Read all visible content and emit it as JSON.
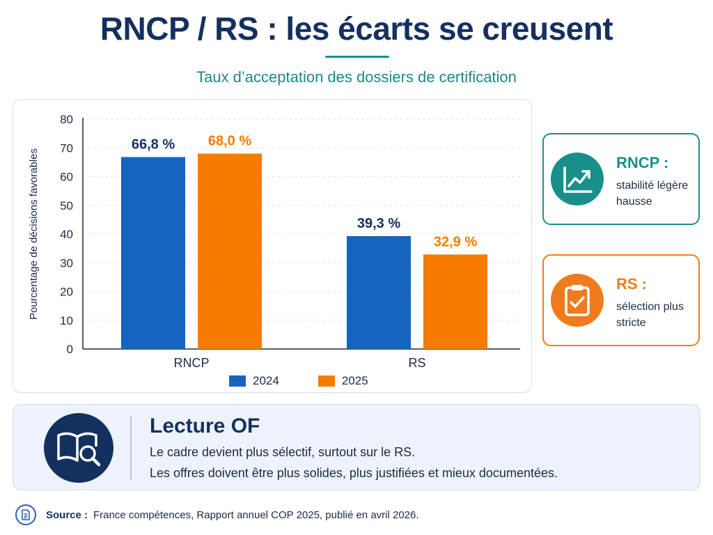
{
  "header": {
    "title": "RNCP / RS : les écarts se creusent",
    "subtitle": "Taux d’acceptation des dossiers de certification"
  },
  "chart_data": {
    "type": "bar",
    "categories": [
      "RNCP",
      "RS"
    ],
    "series": [
      {
        "name": "2024",
        "values": [
          66.8,
          39.3
        ],
        "labels": [
          "66,8 %",
          "39,3 %"
        ],
        "color": "#1565c0"
      },
      {
        "name": "2025",
        "values": [
          68.0,
          32.9
        ],
        "labels": [
          "68,0 %",
          "32,9 %"
        ],
        "color": "#f57c00"
      }
    ],
    "ylabel": "Pourcentage de décisions favorables",
    "ylim": [
      0,
      80
    ],
    "yticks": [
      "0",
      "10",
      "20",
      "30",
      "40",
      "50",
      "60",
      "70",
      "80"
    ],
    "grid": true,
    "legend_position": "bottom"
  },
  "cards": {
    "rncp": {
      "heading": "RNCP :",
      "text": "stabilité légère hausse",
      "icon": "trend-up-chart-icon",
      "color": "#1a8f8a"
    },
    "rs": {
      "heading": "RS :",
      "text": "sélection plus stricte",
      "icon": "clipboard-check-icon",
      "color": "#f07b1c"
    }
  },
  "lecture": {
    "heading": "Lecture OF",
    "line1": "Le cadre devient plus sélectif, surtout sur le RS.",
    "line2": "Les offres doivent être plus solides, plus justifiées et mieux documentées.",
    "icon": "book-magnifier-icon"
  },
  "source": {
    "label": "Source :",
    "text": "France compétences, Rapport annuel COP 2025, publié en avril 2026.",
    "icon": "document-icon"
  }
}
